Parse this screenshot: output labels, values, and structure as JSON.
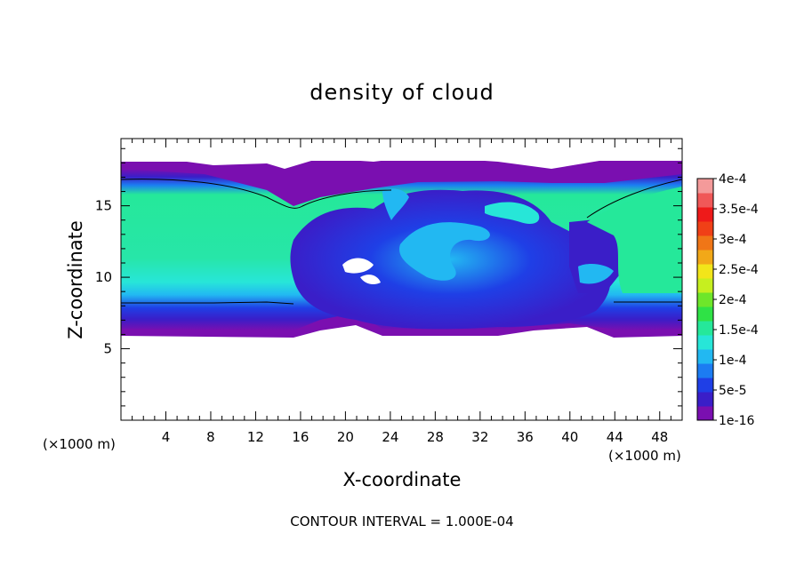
{
  "chart_data": {
    "type": "heatmap",
    "title": "density of cloud",
    "xlabel": "X-coordinate",
    "ylabel": "Z-coordinate",
    "x_unit": "(×1000 m)",
    "y_unit": "(×1000 m)",
    "xlim": [
      0,
      50
    ],
    "ylim": [
      0,
      19.7
    ],
    "x_ticks": [
      4,
      8,
      12,
      16,
      20,
      24,
      28,
      32,
      36,
      40,
      44,
      48
    ],
    "y_ticks": [
      5,
      10,
      15
    ],
    "footer": "CONTOUR INTERVAL = 1.000E-04",
    "colorbar": {
      "labels": [
        "1e-16",
        "5e-5",
        "1e-4",
        "1.5e-4",
        "2e-4",
        "2.5e-4",
        "3e-4",
        "3.5e-4",
        "4e-4"
      ],
      "colors": [
        "#7a0fb0",
        "#3a1ec8",
        "#1f3fe6",
        "#1c7cf2",
        "#22b8f2",
        "#27e6d8",
        "#25e89a",
        "#2fe246",
        "#6ee62a",
        "#c6ef1f",
        "#f2e51a",
        "#f2a818",
        "#f07617",
        "#f04017",
        "#ee1a1a",
        "#f05858",
        "#f49a9a"
      ]
    },
    "field_description_levels": {
      "cloud_base_km": 6.2,
      "cloud_top_km": 18.2,
      "core_value_range": [
        "1.5e-4",
        "2e-4"
      ]
    }
  }
}
